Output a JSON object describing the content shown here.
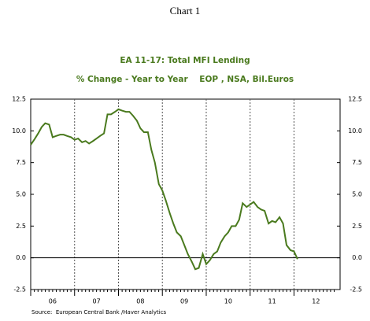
{
  "page_title": "Chart 1",
  "source": "Source:  European Central Bank /Haver Analytics",
  "chart_data": {
    "type": "line",
    "title": "EA 11-17: Total MFI Lending",
    "subtitle": "% Change - Year to Year    EOP , NSA, Bil.Euros",
    "x": [
      2006.0,
      2006.08,
      2006.17,
      2006.25,
      2006.33,
      2006.42,
      2006.5,
      2006.58,
      2006.67,
      2006.75,
      2006.83,
      2006.92,
      2007.0,
      2007.08,
      2007.17,
      2007.25,
      2007.33,
      2007.42,
      2007.5,
      2007.58,
      2007.67,
      2007.75,
      2007.83,
      2007.92,
      2008.0,
      2008.08,
      2008.17,
      2008.25,
      2008.33,
      2008.42,
      2008.5,
      2008.58,
      2008.67,
      2008.75,
      2008.83,
      2008.92,
      2009.0,
      2009.08,
      2009.17,
      2009.25,
      2009.33,
      2009.42,
      2009.5,
      2009.58,
      2009.67,
      2009.75,
      2009.83,
      2009.92,
      2010.0,
      2010.08,
      2010.17,
      2010.25,
      2010.33,
      2010.42,
      2010.5,
      2010.58,
      2010.67,
      2010.75,
      2010.83,
      2010.92,
      2011.0,
      2011.08,
      2011.17,
      2011.25,
      2011.33,
      2011.42,
      2011.5,
      2011.58,
      2011.67,
      2011.75,
      2011.83,
      2011.92,
      2012.0,
      2012.08
    ],
    "series": [
      {
        "name": "EA 11-17: Total MFI Lending",
        "color": "#4a7a1e",
        "values": [
          8.9,
          9.3,
          9.8,
          10.3,
          10.6,
          10.5,
          9.5,
          9.6,
          9.7,
          9.7,
          9.6,
          9.5,
          9.3,
          9.4,
          9.1,
          9.2,
          9.0,
          9.2,
          9.4,
          9.6,
          9.8,
          11.3,
          11.3,
          11.5,
          11.7,
          11.6,
          11.5,
          11.5,
          11.2,
          10.8,
          10.2,
          9.9,
          9.9,
          8.5,
          7.5,
          5.8,
          5.3,
          4.5,
          3.5,
          2.7,
          2.0,
          1.7,
          1.0,
          0.3,
          -0.3,
          -0.9,
          -0.8,
          0.3,
          -0.5,
          -0.2,
          0.3,
          0.5,
          1.2,
          1.7,
          2.0,
          2.5,
          2.5,
          3.0,
          4.3,
          4.0,
          4.2,
          4.4,
          4.0,
          3.8,
          3.7,
          2.7,
          2.9,
          2.8,
          3.2,
          2.7,
          1.0,
          0.6,
          0.5,
          -0.1
        ]
      }
    ],
    "xlim": [
      2006,
      2013.05
    ],
    "xticks": [
      {
        "value": 2006,
        "label": "06"
      },
      {
        "value": 2007,
        "label": "07"
      },
      {
        "value": 2008,
        "label": "08"
      },
      {
        "value": 2009,
        "label": "09"
      },
      {
        "value": 2010,
        "label": "10"
      },
      {
        "value": 2011,
        "label": "11"
      },
      {
        "value": 2012,
        "label": "12"
      }
    ],
    "ylim": [
      -2.5,
      12.5
    ],
    "yticks": [
      {
        "value": 12.5,
        "label": "12.5"
      },
      {
        "value": 10,
        "label": "10.0"
      },
      {
        "value": 7.5,
        "label": "7.5"
      },
      {
        "value": 5,
        "label": "5.0"
      },
      {
        "value": 2.5,
        "label": "2.5"
      },
      {
        "value": 0,
        "label": "0.0"
      },
      {
        "value": -2.5,
        "label": "-2.5"
      }
    ],
    "grid": true
  }
}
